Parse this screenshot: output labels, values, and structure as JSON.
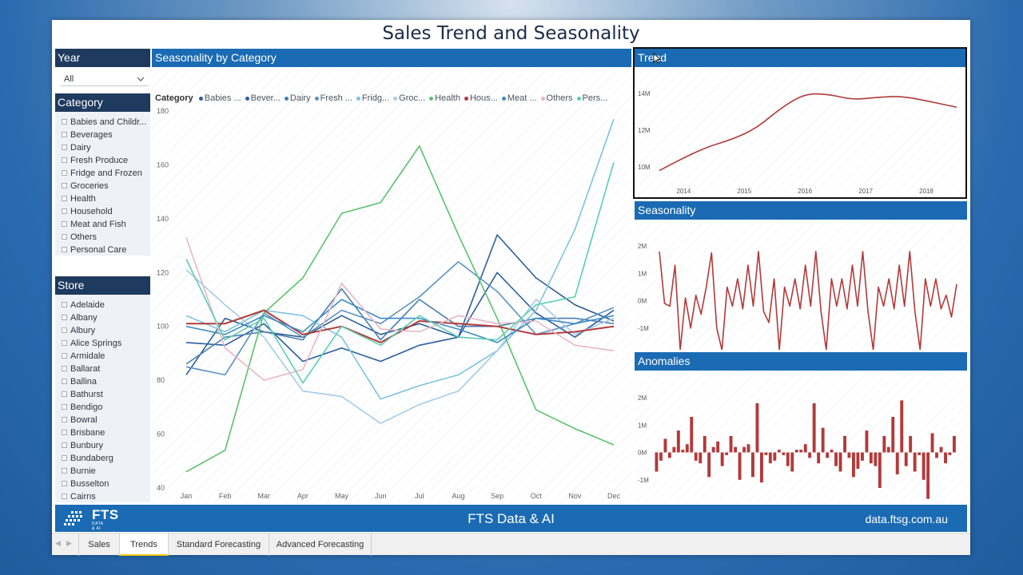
{
  "title": "Sales Trend and Seasonality",
  "year_slicer": {
    "header": "Year",
    "selected": "All"
  },
  "category_slicer": {
    "header": "Category",
    "items": [
      "Babies and Childr...",
      "Beverages",
      "Dairy",
      "Fresh Produce",
      "Fridge and Frozen",
      "Groceries",
      "Health",
      "Household",
      "Meat and Fish",
      "Others",
      "Personal Care"
    ]
  },
  "store_slicer": {
    "header": "Store",
    "items": [
      "Adelaide",
      "Albany",
      "Albury",
      "Alice Springs",
      "Armidale",
      "Ballarat",
      "Ballina",
      "Bathurst",
      "Bendigo",
      "Bowral",
      "Brisbane",
      "Bunbury",
      "Bundaberg",
      "Burnie",
      "Busselton",
      "Cairns"
    ]
  },
  "seasonality_panel": {
    "header": "Seasonality by Category",
    "legend_title": "Category",
    "legend": [
      {
        "label": "Babies ...",
        "color": "#2e5e93"
      },
      {
        "label": "Bever...",
        "color": "#2a5f9e"
      },
      {
        "label": "Dairy",
        "color": "#4a7fb2"
      },
      {
        "label": "Fresh ...",
        "color": "#5a93c2"
      },
      {
        "label": "Fridg...",
        "color": "#7dc3e0"
      },
      {
        "label": "Groc...",
        "color": "#a4cde6"
      },
      {
        "label": "Health",
        "color": "#5bc26b"
      },
      {
        "label": "Hous...",
        "color": "#b23a3a"
      },
      {
        "label": "Meat ...",
        "color": "#3d8cbf"
      },
      {
        "label": "Others",
        "color": "#e8b6c6"
      },
      {
        "label": "Pers...",
        "color": "#5ccfb0"
      }
    ]
  },
  "trend_panel": {
    "header": "Trend"
  },
  "seasonality_small_panel": {
    "header": "Seasonality"
  },
  "anomalies_panel": {
    "header": "Anomalies"
  },
  "chart_data": [
    {
      "type": "line",
      "title": "Seasonality by Category",
      "categories": [
        "Jan",
        "Feb",
        "Mar",
        "Apr",
        "May",
        "Jun",
        "Jul",
        "Aug",
        "Sep",
        "Oct",
        "Nov",
        "Dec"
      ],
      "ylim": [
        40,
        180
      ],
      "yticks": [
        40,
        60,
        80,
        100,
        120,
        140,
        160,
        180
      ],
      "series": [
        {
          "name": "Babies ...",
          "color": "#2e5e93",
          "values": [
            82,
            103,
            98,
            96,
            104,
            97,
            101,
            96,
            134,
            118,
            108,
            102
          ]
        },
        {
          "name": "Bever...",
          "color": "#2a5f9e",
          "values": [
            94,
            93,
            101,
            87,
            92,
            87,
            93,
            96,
            120,
            105,
            96,
            106
          ]
        },
        {
          "name": "Dairy",
          "color": "#4a7fb2",
          "values": [
            86,
            96,
            98,
            95,
            114,
            95,
            110,
            100,
            100,
            103,
            103,
            101
          ]
        },
        {
          "name": "Fresh ...",
          "color": "#5a93c2",
          "values": [
            85,
            82,
            105,
            96,
            106,
            101,
            111,
            124,
            113,
            97,
            101,
            107
          ]
        },
        {
          "name": "Fridg...",
          "color": "#7dc3e0",
          "values": [
            104,
            98,
            106,
            104,
            96,
            73,
            78,
            82,
            91,
            106,
            136,
            177
          ]
        },
        {
          "name": "Groc...",
          "color": "#a4cde6",
          "values": [
            121,
            108,
            96,
            76,
            74,
            64,
            71,
            76,
            91,
            110,
            97,
            103
          ]
        },
        {
          "name": "Health",
          "color": "#5bc26b",
          "values": [
            46,
            54,
            105,
            118,
            142,
            146,
            167,
            134,
            103,
            69,
            62,
            56
          ]
        },
        {
          "name": "Hous...",
          "color": "#b23a3a",
          "values": [
            101,
            101,
            106,
            97,
            100,
            94,
            102,
            101,
            100,
            97,
            98,
            100
          ]
        },
        {
          "name": "Meat ...",
          "color": "#3d8cbf",
          "values": [
            100,
            97,
            104,
            98,
            110,
            103,
            103,
            99,
            94,
            103,
            101,
            104
          ]
        },
        {
          "name": "Others",
          "color": "#e8b6c6",
          "values": [
            133,
            92,
            80,
            84,
            116,
            99,
            98,
            104,
            101,
            102,
            93,
            91
          ]
        },
        {
          "name": "Pers...",
          "color": "#5ccfb0",
          "values": [
            125,
            95,
            103,
            79,
            100,
            93,
            104,
            96,
            95,
            108,
            111,
            161
          ]
        }
      ]
    },
    {
      "type": "line",
      "title": "Trend",
      "color": "#b23a3a",
      "xticks": [
        "2014",
        "2015",
        "2016",
        "2017",
        "2018"
      ],
      "yticks": [
        "10M",
        "12M",
        "14M"
      ],
      "ylim": [
        9,
        15
      ],
      "xlim": [
        2013.6,
        2018.5
      ],
      "x": [
        2013.6,
        2014.0,
        2014.4,
        2014.8,
        2015.2,
        2015.6,
        2016.0,
        2016.4,
        2016.8,
        2017.2,
        2017.6,
        2018.0,
        2018.5
      ],
      "values": [
        9.8,
        10.5,
        11.1,
        11.5,
        12.1,
        13.2,
        14.0,
        13.95,
        13.65,
        13.8,
        13.85,
        13.6,
        13.25
      ]
    },
    {
      "type": "line",
      "title": "Seasonality",
      "color": "#b23a3a",
      "xticks": [
        "2014",
        "2015",
        "2016",
        "2017",
        "2018"
      ],
      "yticks": [
        "2M",
        "1M",
        "0M",
        "-1M",
        "-2M"
      ],
      "ylim": [
        -2,
        2
      ],
      "xlim": [
        2013.5,
        2018.5
      ],
      "monthly_start": 2013.5,
      "values": [
        1.8,
        -0.1,
        -0.2,
        1.3,
        -1.8,
        0.1,
        -1.0,
        0.2,
        -0.5,
        0.5,
        1.75,
        -1.0,
        -1.8,
        0.5,
        -0.2,
        0.8,
        -0.3,
        1.3,
        -0.2,
        1.8,
        -0.4,
        -0.8,
        0.8,
        -1.8,
        0.5,
        -0.2,
        0.8,
        -0.3,
        1.3,
        -0.2,
        1.8,
        -0.4,
        -1.8,
        0.8,
        -0.2,
        0.8,
        -0.3,
        1.3,
        -0.2,
        1.8,
        -0.4,
        -1.8,
        0.5,
        -0.2,
        0.8,
        -0.3,
        1.3,
        -0.2,
        1.8,
        -0.4,
        -1.8,
        0.8,
        -0.2,
        0.8,
        -0.3,
        0.2,
        -0.6,
        0.6
      ]
    },
    {
      "type": "bar",
      "title": "Anomalies",
      "color": "#b23a3a",
      "xticks": [
        "2014",
        "2015",
        "2016",
        "2017",
        "2018"
      ],
      "yticks": [
        "2M",
        "1M",
        "0M",
        "-1M",
        "-2M"
      ],
      "ylim": [
        -2,
        2
      ],
      "xlim": [
        2013.5,
        2018.5
      ],
      "monthly_start": 2013.5,
      "values": [
        -0.7,
        -0.3,
        0.5,
        -0.2,
        0.2,
        0.8,
        0.1,
        0.3,
        1.3,
        -0.3,
        -0.4,
        0.6,
        -0.9,
        0.2,
        0.4,
        -0.5,
        -0.1,
        0.6,
        0.2,
        -1.0,
        0.2,
        0.3,
        -0.9,
        1.8,
        -1.1,
        -0.1,
        -0.4,
        -0.3,
        0.1,
        -0.1,
        -0.5,
        -0.7,
        0.1,
        0.1,
        0.3,
        -0.2,
        1.8,
        -0.4,
        0.9,
        -0.2,
        0.1,
        -0.5,
        -0.7,
        0.6,
        -0.2,
        -0.9,
        -0.6,
        -0.3,
        0.8,
        -0.4,
        -0.5,
        -1.3,
        0.6,
        0.2,
        1.3,
        -0.8,
        1.9,
        -0.5,
        0.6,
        -0.7,
        -0.1,
        -1.0,
        -1.7,
        0.7,
        -0.2,
        0.2,
        -0.4,
        -0.1,
        0.6
      ]
    }
  ],
  "footer": {
    "logo": "FTS",
    "logo_sub": "DATA & AI",
    "center": "FTS Data & AI",
    "right": "data.ftsg.com.au"
  },
  "tabs": [
    {
      "label": "Sales",
      "active": false
    },
    {
      "label": "Trends",
      "active": true
    },
    {
      "label": "Standard Forecasting",
      "active": false
    },
    {
      "label": "Advanced Forecasting",
      "active": false
    }
  ],
  "tab_nav": {
    "prev": "◀",
    "next": "▶"
  }
}
